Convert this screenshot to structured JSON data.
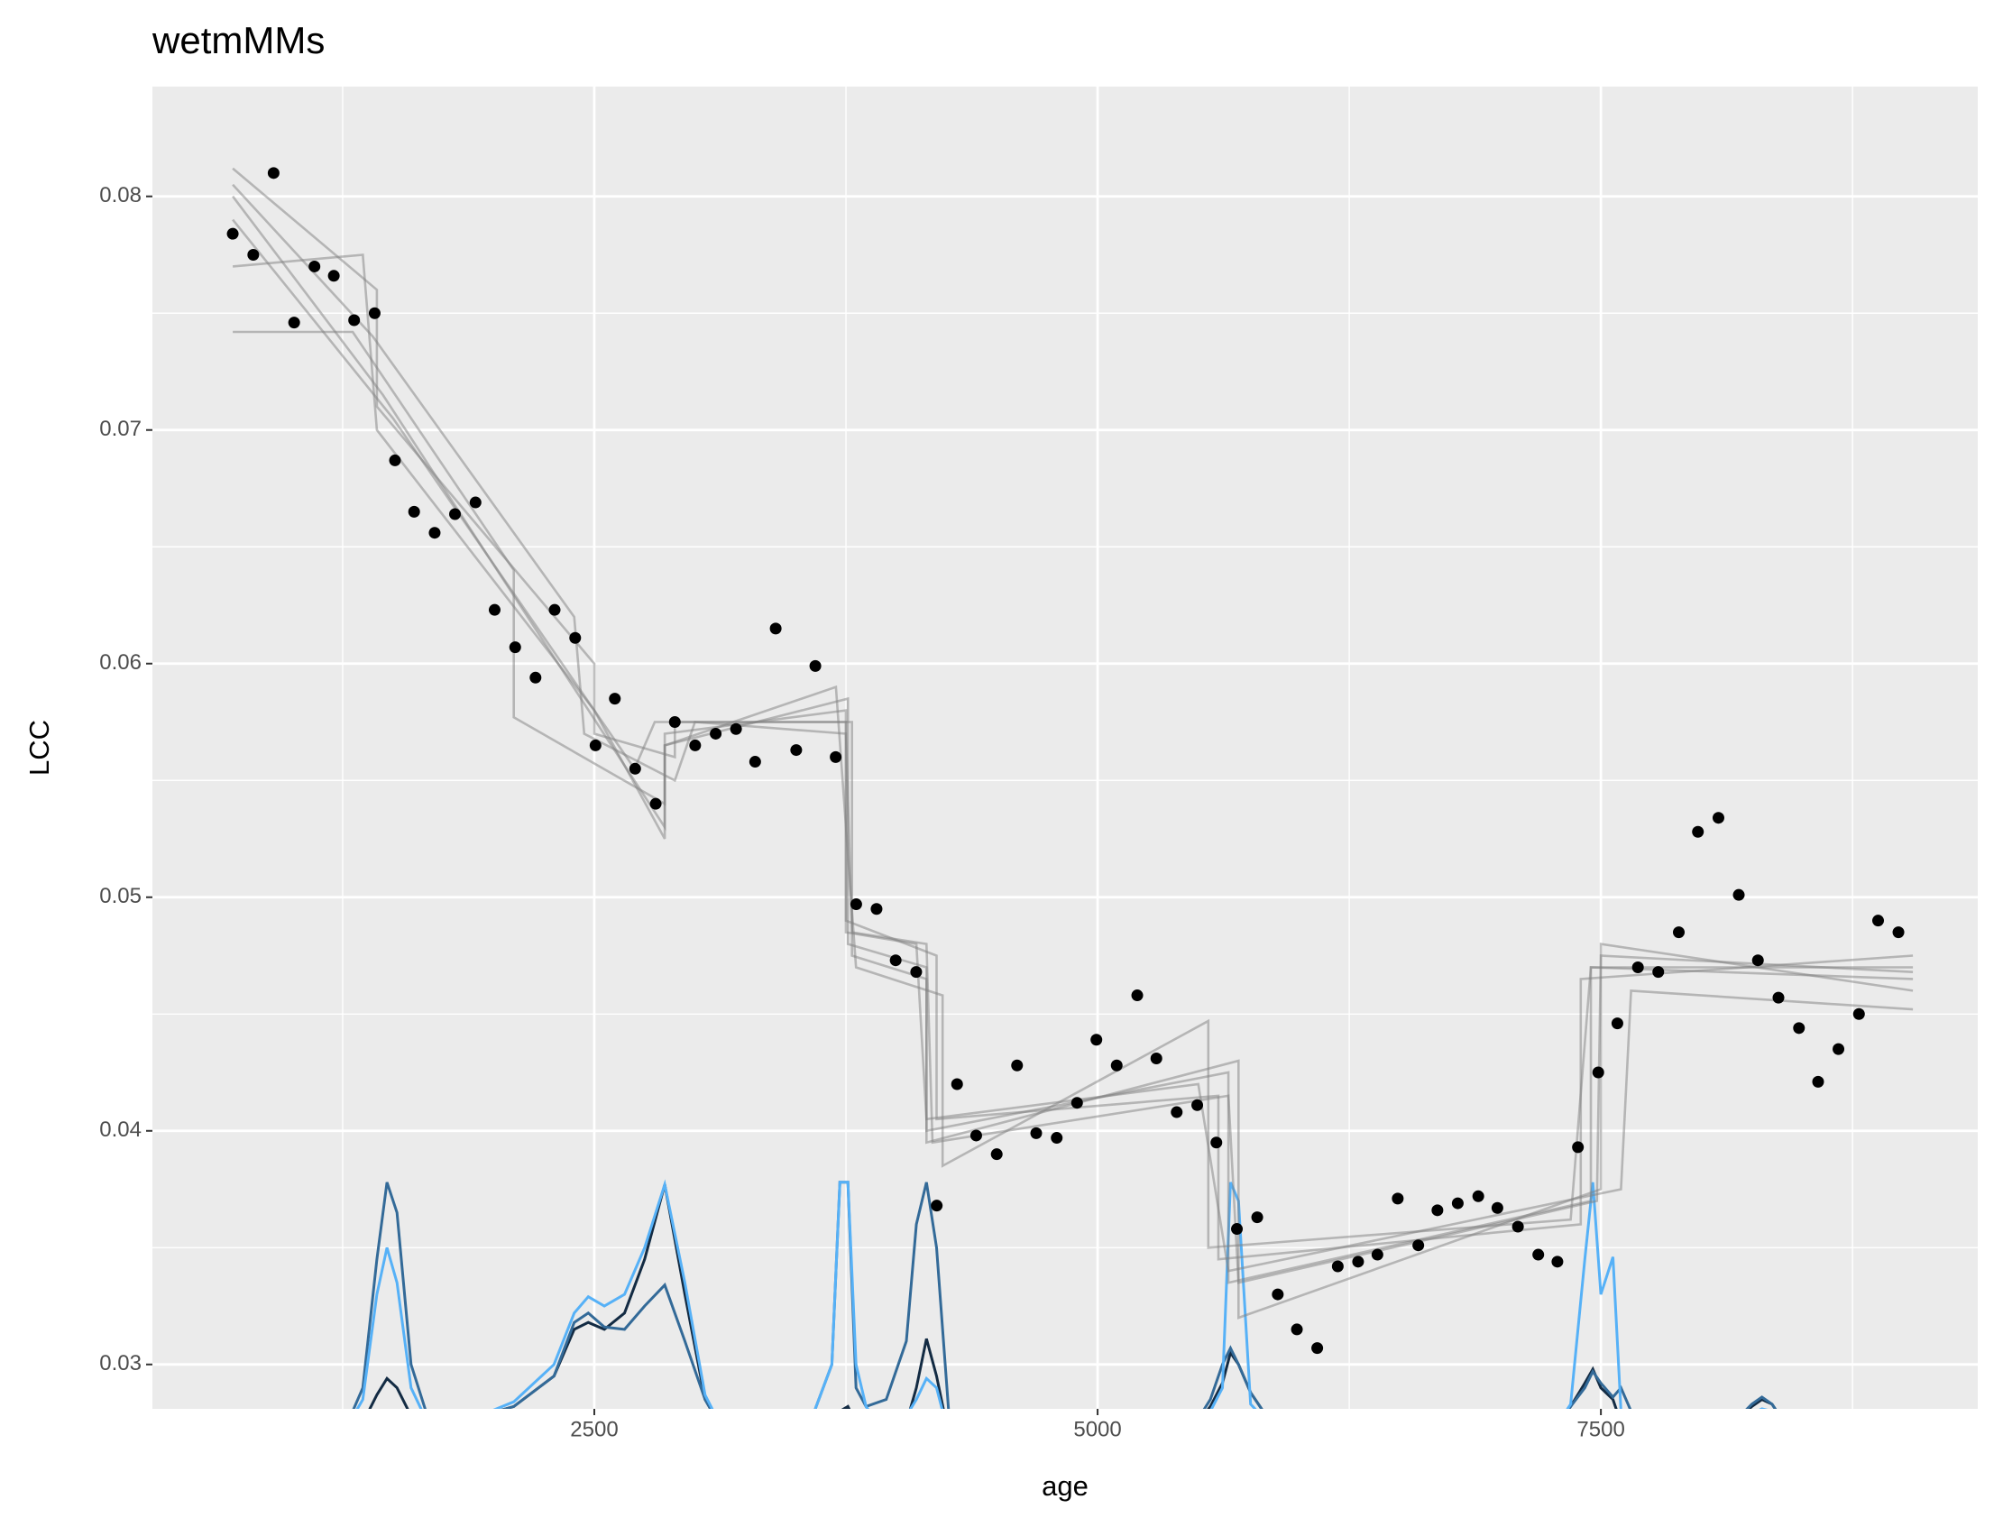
{
  "chart_data": {
    "type": "scatter",
    "title": "wetmMMs",
    "x_label": "age",
    "y_label": "LCC",
    "xlim": [
      305,
      9372
    ],
    "ylim": [
      0.0281,
      0.0847
    ],
    "xticks": [
      2500,
      5000,
      7500
    ],
    "yticks": [
      0.03,
      0.04,
      0.05,
      0.06,
      0.07,
      0.08
    ],
    "x_minor_ticks": [
      1250,
      3750,
      6250,
      8750
    ],
    "y_minor_ticks": [
      0.035,
      0.045,
      0.055,
      0.065,
      0.075
    ],
    "grid": true,
    "color": "#000000",
    "x": [
      704,
      806,
      907,
      1009,
      1110,
      1206,
      1307,
      1409,
      1510,
      1605,
      1707,
      1808,
      1910,
      2005,
      2107,
      2208,
      2303,
      2405,
      2506,
      2602,
      2703,
      2805,
      2900,
      3001,
      3103,
      3204,
      3299,
      3401,
      3503,
      3598,
      3699,
      3801,
      3902,
      3997,
      4099,
      4201,
      4302,
      4397,
      4499,
      4600,
      4695,
      4797,
      4898,
      4994,
      5095,
      5197,
      5292,
      5393,
      5495,
      5590,
      5692,
      5793,
      5895,
      5990,
      6091,
      6193,
      6294,
      6390,
      6491,
      6593,
      6688,
      6789,
      6891,
      6986,
      7088,
      7189,
      7284,
      7386,
      7487,
      7582,
      7684,
      7785,
      7887,
      7982,
      8084,
      8185,
      8280,
      8382,
      8484,
      8579,
      8680,
      8782,
      8877,
      8978
    ],
    "values": [
      0.0784,
      0.0775,
      0.081,
      0.0746,
      0.077,
      0.0766,
      0.0747,
      0.075,
      0.0687,
      0.0665,
      0.0656,
      0.0664,
      0.0669,
      0.0623,
      0.0607,
      0.0594,
      0.0623,
      0.0611,
      0.0565,
      0.0585,
      0.0555,
      0.054,
      0.0575,
      0.0565,
      0.057,
      0.0572,
      0.0558,
      0.0615,
      0.0563,
      0.0599,
      0.056,
      0.0497,
      0.0495,
      0.0473,
      0.0468,
      0.0368,
      0.042,
      0.0398,
      0.039,
      0.0428,
      0.0399,
      0.0397,
      0.0412,
      0.0439,
      0.0428,
      0.0458,
      0.0431,
      0.0408,
      0.0411,
      0.0395,
      0.0358,
      0.0363,
      0.033,
      0.0315,
      0.0307,
      0.0342,
      0.0344,
      0.0347,
      0.0371,
      0.0351,
      0.0366,
      0.0369,
      0.0372,
      0.0367,
      0.0359,
      0.0347,
      0.0344,
      0.0393,
      0.0425,
      0.0446,
      0.047,
      0.0468,
      0.0485,
      0.0528,
      0.0534,
      0.0501,
      0.0473,
      0.0457,
      0.0444,
      0.0421,
      0.0435,
      0.045,
      0.049,
      0.0485
    ],
    "fit_color": "#7f7f7f",
    "fits": [
      {
        "x": [
          704,
          1450,
          2850,
          2850,
          3760,
          3760,
          4150,
          4150,
          5650,
          5650,
          7450,
          7450,
          9050
        ],
        "values": [
          0.08,
          0.0715,
          0.053,
          0.0565,
          0.0585,
          0.048,
          0.047,
          0.04,
          0.0425,
          0.0335,
          0.037,
          0.047,
          0.047
        ]
      },
      {
        "x": [
          704,
          1350,
          1420,
          2500,
          2850,
          2850,
          3750,
          3750,
          4200,
          4200,
          5600,
          5600,
          7400,
          7400,
          9050
        ],
        "values": [
          0.077,
          0.0775,
          0.07,
          0.058,
          0.0525,
          0.057,
          0.058,
          0.049,
          0.0475,
          0.0405,
          0.0415,
          0.0345,
          0.036,
          0.0465,
          0.0475
        ]
      },
      {
        "x": [
          704,
          1420,
          1420,
          2500,
          2500,
          2900,
          2900,
          3780,
          3780,
          4150,
          4150,
          5700,
          5700,
          7500,
          7500,
          9050
        ],
        "values": [
          0.0812,
          0.076,
          0.071,
          0.06,
          0.057,
          0.056,
          0.0575,
          0.0575,
          0.0475,
          0.0465,
          0.0395,
          0.043,
          0.032,
          0.0375,
          0.048,
          0.046
        ]
      },
      {
        "x": [
          704,
          1300,
          2100,
          2100,
          2850,
          2850,
          3700,
          3800,
          4230,
          4230,
          5550,
          5550,
          7350,
          7450,
          9050
        ],
        "values": [
          0.0742,
          0.0742,
          0.064,
          0.0577,
          0.054,
          0.0565,
          0.059,
          0.047,
          0.0458,
          0.0385,
          0.0447,
          0.035,
          0.0362,
          0.047,
          0.0465
        ]
      },
      {
        "x": [
          704,
          1500,
          2700,
          2800,
          3750,
          3750,
          4100,
          4150,
          5500,
          5650,
          7600,
          7650,
          9050
        ],
        "values": [
          0.079,
          0.0705,
          0.0555,
          0.0575,
          0.0575,
          0.0485,
          0.048,
          0.0405,
          0.042,
          0.034,
          0.0375,
          0.046,
          0.0452
        ]
      },
      {
        "x": [
          704,
          1400,
          2400,
          2450,
          2900,
          3000,
          3750,
          3780,
          4150,
          4180,
          5650,
          5700,
          7480,
          7500,
          9050
        ],
        "values": [
          0.0805,
          0.074,
          0.062,
          0.057,
          0.055,
          0.0575,
          0.057,
          0.0485,
          0.048,
          0.0395,
          0.0415,
          0.0335,
          0.037,
          0.0475,
          0.0468
        ]
      }
    ],
    "density_x": [
      1250,
      1350,
      1420,
      1470,
      1520,
      1590,
      1700,
      1900,
      2100,
      2300,
      2400,
      2470,
      2550,
      2650,
      2750,
      2850,
      2950,
      3050,
      3150,
      3550,
      3680,
      3720,
      3760,
      3800,
      3850,
      3950,
      4050,
      4100,
      4150,
      4200,
      4260,
      5450,
      5560,
      5620,
      5660,
      5700,
      5760,
      5900,
      7250,
      7350,
      7420,
      7460,
      7500,
      7560,
      7600,
      7700,
      8100,
      8250,
      8300,
      8350,
      8450
    ],
    "density": [
      {
        "color": "#132b43",
        "values": [
          0.027,
          0.0275,
          0.0287,
          0.0294,
          0.029,
          0.0278,
          0.027,
          0.0277,
          0.0282,
          0.0295,
          0.0315,
          0.0318,
          0.0315,
          0.0322,
          0.0345,
          0.0377,
          0.033,
          0.0285,
          0.027,
          0.027,
          0.0272,
          0.028,
          0.0282,
          0.0275,
          0.027,
          0.027,
          0.0275,
          0.029,
          0.0311,
          0.0295,
          0.027,
          0.027,
          0.0282,
          0.0292,
          0.0305,
          0.03,
          0.0288,
          0.027,
          0.027,
          0.0282,
          0.0292,
          0.0298,
          0.029,
          0.0285,
          0.0275,
          0.027,
          0.027,
          0.0282,
          0.0285,
          0.0283,
          0.027
        ]
      },
      {
        "color": "#336a98",
        "values": [
          0.027,
          0.029,
          0.0345,
          0.0378,
          0.0365,
          0.03,
          0.027,
          0.0277,
          0.0282,
          0.0295,
          0.0318,
          0.0322,
          0.0316,
          0.0315,
          0.0325,
          0.0334,
          0.031,
          0.0285,
          0.027,
          0.027,
          0.03,
          0.0378,
          0.0378,
          0.029,
          0.0282,
          0.0285,
          0.031,
          0.036,
          0.0378,
          0.035,
          0.028,
          0.027,
          0.0285,
          0.03,
          0.0307,
          0.03,
          0.0288,
          0.027,
          0.027,
          0.0282,
          0.029,
          0.0297,
          0.0292,
          0.0286,
          0.029,
          0.027,
          0.027,
          0.0283,
          0.0286,
          0.0283,
          0.027
        ]
      },
      {
        "color": "#56b1f7",
        "values": [
          0.027,
          0.0285,
          0.033,
          0.035,
          0.0335,
          0.029,
          0.027,
          0.0277,
          0.0284,
          0.03,
          0.0322,
          0.0329,
          0.0325,
          0.033,
          0.035,
          0.0377,
          0.0335,
          0.0287,
          0.027,
          0.027,
          0.03,
          0.0378,
          0.0378,
          0.03,
          0.0282,
          0.027,
          0.0278,
          0.0285,
          0.0294,
          0.029,
          0.027,
          0.027,
          0.028,
          0.029,
          0.0378,
          0.037,
          0.0283,
          0.027,
          0.027,
          0.0283,
          0.0345,
          0.0378,
          0.033,
          0.0346,
          0.028,
          0.027,
          0.027,
          0.0279,
          0.0281,
          0.028,
          0.027
        ]
      }
    ]
  }
}
